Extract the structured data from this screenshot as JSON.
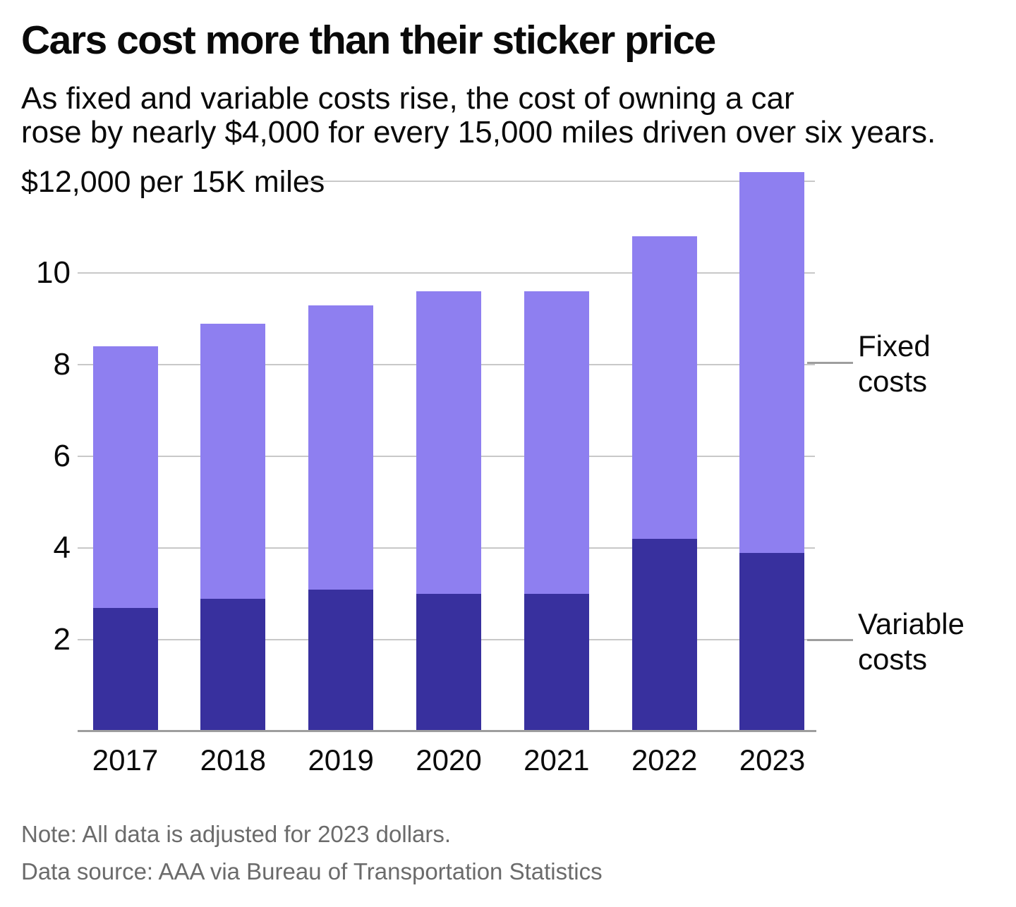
{
  "header": {
    "title": "Cars cost more than their sticker price",
    "subtitle_line1": "As fixed and variable costs rise, the cost of owning a car",
    "subtitle_line2": "rose by nearly $4,000 for every 15,000 miles driven over six years."
  },
  "chart_data": {
    "type": "bar",
    "stacked": true,
    "title": "Cars cost more than their sticker price",
    "unit_label": "$12,000 per 15K miles",
    "value_unit": "thousand dollars per 15,000 miles",
    "categories": [
      "2017",
      "2018",
      "2019",
      "2020",
      "2021",
      "2022",
      "2023"
    ],
    "series": [
      {
        "name": "Variable costs",
        "color": "#38309e",
        "values": [
          2.7,
          2.9,
          3.1,
          3.0,
          3.0,
          4.2,
          3.9
        ]
      },
      {
        "name": "Fixed costs",
        "color": "#8e7ff0",
        "values": [
          5.7,
          6.0,
          6.2,
          6.6,
          6.6,
          6.6,
          8.3
        ]
      }
    ],
    "totals": [
      8.4,
      8.9,
      9.3,
      9.6,
      9.6,
      10.8,
      12.2
    ],
    "y_ticks": [
      2,
      4,
      6,
      8,
      10
    ],
    "y_top_value": 12,
    "ylim": [
      0,
      12.2
    ],
    "grid": true,
    "legend_position": "right"
  },
  "labels": {
    "fixed": "Fixed costs",
    "variable": "Variable costs"
  },
  "footer": {
    "note": "Note: All data is adjusted for 2023 dollars.",
    "source": "Data source: AAA via Bureau of Transportation Statistics"
  },
  "colors": {
    "fixed_costs": "#8e7ff0",
    "variable_costs": "#38309e",
    "gridline": "#c8c8c8",
    "axis_line": "#9e9e9e",
    "text": "#0a0a0a",
    "footer_text": "#6b6b6b"
  }
}
